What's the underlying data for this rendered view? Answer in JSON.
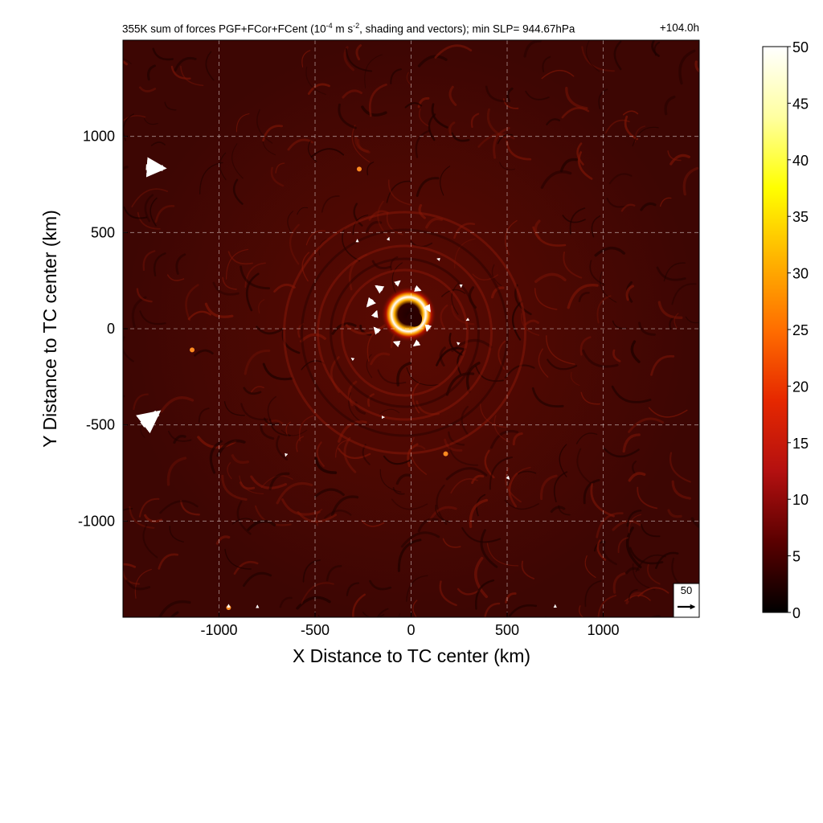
{
  "chart_data": {
    "type": "heatmap",
    "title": "355K sum of forces PGF+FCor+FCent (10",
    "title_exp": "-4",
    "title_units": " m s",
    "title_units_exp": "-2",
    "title_rest": ", shading and vectors); min SLP= 944.67hPa",
    "time_tag": "+104.0h",
    "xlabel": "X Distance to TC center (km)",
    "ylabel": "Y Distance to TC center (km)",
    "xlim": [
      -1500,
      1500
    ],
    "ylim": [
      -1500,
      1500
    ],
    "x_ticks": [
      -1000,
      -500,
      0,
      500,
      1000
    ],
    "y_ticks": [
      -1000,
      -500,
      0,
      500,
      1000
    ],
    "x_tick_labels": [
      "-1000",
      "-500",
      "0",
      "500",
      "1000"
    ],
    "y_tick_labels": [
      "-1000",
      "-500",
      "0",
      "500",
      "1000"
    ],
    "grid": true,
    "colorbar": {
      "min": 0,
      "max": 50,
      "ticks": [
        0,
        5,
        10,
        15,
        20,
        25,
        30,
        35,
        40,
        45,
        50
      ],
      "tick_labels": [
        "0",
        "5",
        "10",
        "15",
        "20",
        "25",
        "30",
        "35",
        "40",
        "45",
        "50"
      ],
      "colormap": [
        "#000000",
        "#5a0000",
        "#b41010",
        "#e62800",
        "#ff6e00",
        "#ffb400",
        "#ffff00",
        "#ffffa0",
        "#ffffff"
      ]
    },
    "reference_vector": {
      "label": "50",
      "value": 50
    },
    "features": {
      "eyewall_ring_radius_km": 90,
      "eyewall_peak_value": 50,
      "background_value": 6
    },
    "vectors": [
      {
        "x": -1380,
        "y": 840,
        "u": 50,
        "v": -3
      },
      {
        "x": -1400,
        "y": -500,
        "u": 45,
        "v": 35
      },
      {
        "x": -200,
        "y": 150,
        "u": -15,
        "v": -18
      },
      {
        "x": -150,
        "y": 200,
        "u": -18,
        "v": 12
      },
      {
        "x": -80,
        "y": 230,
        "u": 12,
        "v": 10
      },
      {
        "x": 20,
        "y": 210,
        "u": 16,
        "v": -6
      },
      {
        "x": 80,
        "y": 120,
        "u": 10,
        "v": -16
      },
      {
        "x": 90,
        "y": 20,
        "u": -4,
        "v": -17
      },
      {
        "x": 40,
        "y": -70,
        "u": -14,
        "v": -10
      },
      {
        "x": -60,
        "y": -80,
        "u": -16,
        "v": 6
      },
      {
        "x": -170,
        "y": -20,
        "u": -12,
        "v": 14
      },
      {
        "x": -190,
        "y": 60,
        "u": 6,
        "v": 17
      },
      {
        "x": -280,
        "y": 450,
        "u": 0,
        "v": 8
      },
      {
        "x": -120,
        "y": 460,
        "u": 3,
        "v": 8
      },
      {
        "x": 150,
        "y": 360,
        "u": -8,
        "v": 2
      },
      {
        "x": 260,
        "y": 230,
        "u": 0,
        "v": -8
      },
      {
        "x": 300,
        "y": 50,
        "u": -7,
        "v": -4
      },
      {
        "x": 250,
        "y": -80,
        "u": -6,
        "v": 5
      },
      {
        "x": -300,
        "y": -160,
        "u": -6,
        "v": 4
      },
      {
        "x": -150,
        "y": -460,
        "u": 6,
        "v": 0
      },
      {
        "x": -650,
        "y": -650,
        "u": -2,
        "v": -7
      },
      {
        "x": 500,
        "y": -770,
        "u": 6,
        "v": -7
      },
      {
        "x": -950,
        "y": -1450,
        "u": 0,
        "v": 9
      },
      {
        "x": -800,
        "y": -1450,
        "u": 0,
        "v": 7
      },
      {
        "x": 750,
        "y": -1450,
        "u": 0,
        "v": 8
      }
    ]
  }
}
